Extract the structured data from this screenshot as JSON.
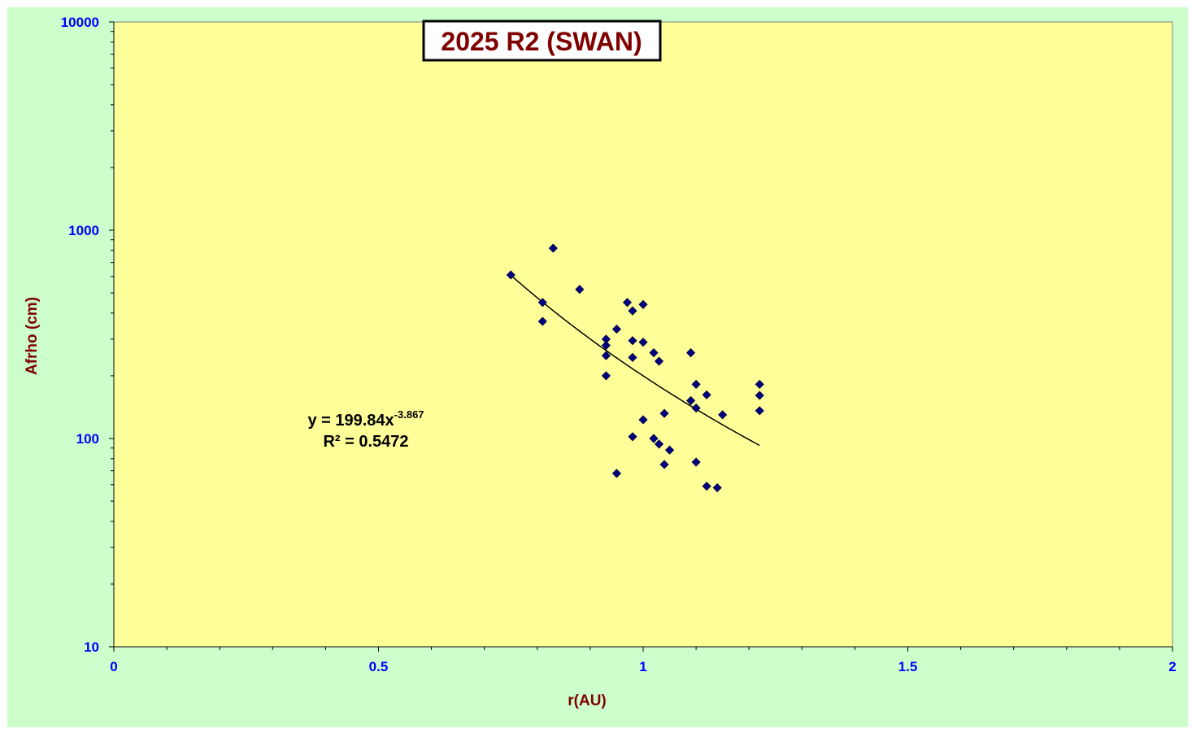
{
  "chart_data": {
    "type": "scatter",
    "title": "2025 R2 (SWAN)",
    "xlabel": "r(AU)",
    "ylabel": "Afrho (cm)",
    "xlim": [
      0,
      2
    ],
    "ylim": [
      10,
      10000
    ],
    "y_scale": "log",
    "x_ticks": [
      "0",
      "0.5",
      "1",
      "1.5",
      "2"
    ],
    "y_ticks": [
      "10",
      "100",
      "1000",
      "10000"
    ],
    "grid": false,
    "legend": "none",
    "colors": {
      "outer_background": "#ccffcc",
      "plot_background": "#ffff99",
      "marker": "#000080",
      "axis_tick_labels": "#0000ff",
      "axis_titles": "#800000",
      "title": "#800000",
      "trendline": "#000000"
    },
    "marker_shape": "diamond",
    "series": [
      {
        "points": [
          [
            0.75,
            610
          ],
          [
            0.81,
            450
          ],
          [
            0.81,
            365
          ],
          [
            0.83,
            820
          ],
          [
            0.88,
            520
          ],
          [
            0.93,
            300
          ],
          [
            0.93,
            280
          ],
          [
            0.93,
            250
          ],
          [
            0.93,
            200
          ],
          [
            0.95,
            335
          ],
          [
            0.95,
            68
          ],
          [
            0.97,
            450
          ],
          [
            0.98,
            410
          ],
          [
            0.98,
            295
          ],
          [
            0.98,
            245
          ],
          [
            0.98,
            102
          ],
          [
            1.0,
            440
          ],
          [
            1.0,
            290
          ],
          [
            1.0,
            123
          ],
          [
            1.02,
            258
          ],
          [
            1.02,
            100
          ],
          [
            1.03,
            235
          ],
          [
            1.03,
            94
          ],
          [
            1.04,
            132
          ],
          [
            1.04,
            75
          ],
          [
            1.05,
            88
          ],
          [
            1.09,
            258
          ],
          [
            1.09,
            152
          ],
          [
            1.1,
            182
          ],
          [
            1.1,
            140
          ],
          [
            1.1,
            77
          ],
          [
            1.12,
            162
          ],
          [
            1.12,
            59
          ],
          [
            1.14,
            58
          ],
          [
            1.15,
            130
          ],
          [
            1.22,
            182
          ],
          [
            1.22,
            161
          ],
          [
            1.22,
            136
          ]
        ]
      }
    ],
    "trendline": {
      "type": "power",
      "a": 199.84,
      "b": -3.867,
      "x_range": [
        0.75,
        1.22
      ],
      "equation_main": "y = 199.84x",
      "equation_exponent": "-3.867",
      "r_squared_text": "R² = 0.5472"
    }
  }
}
